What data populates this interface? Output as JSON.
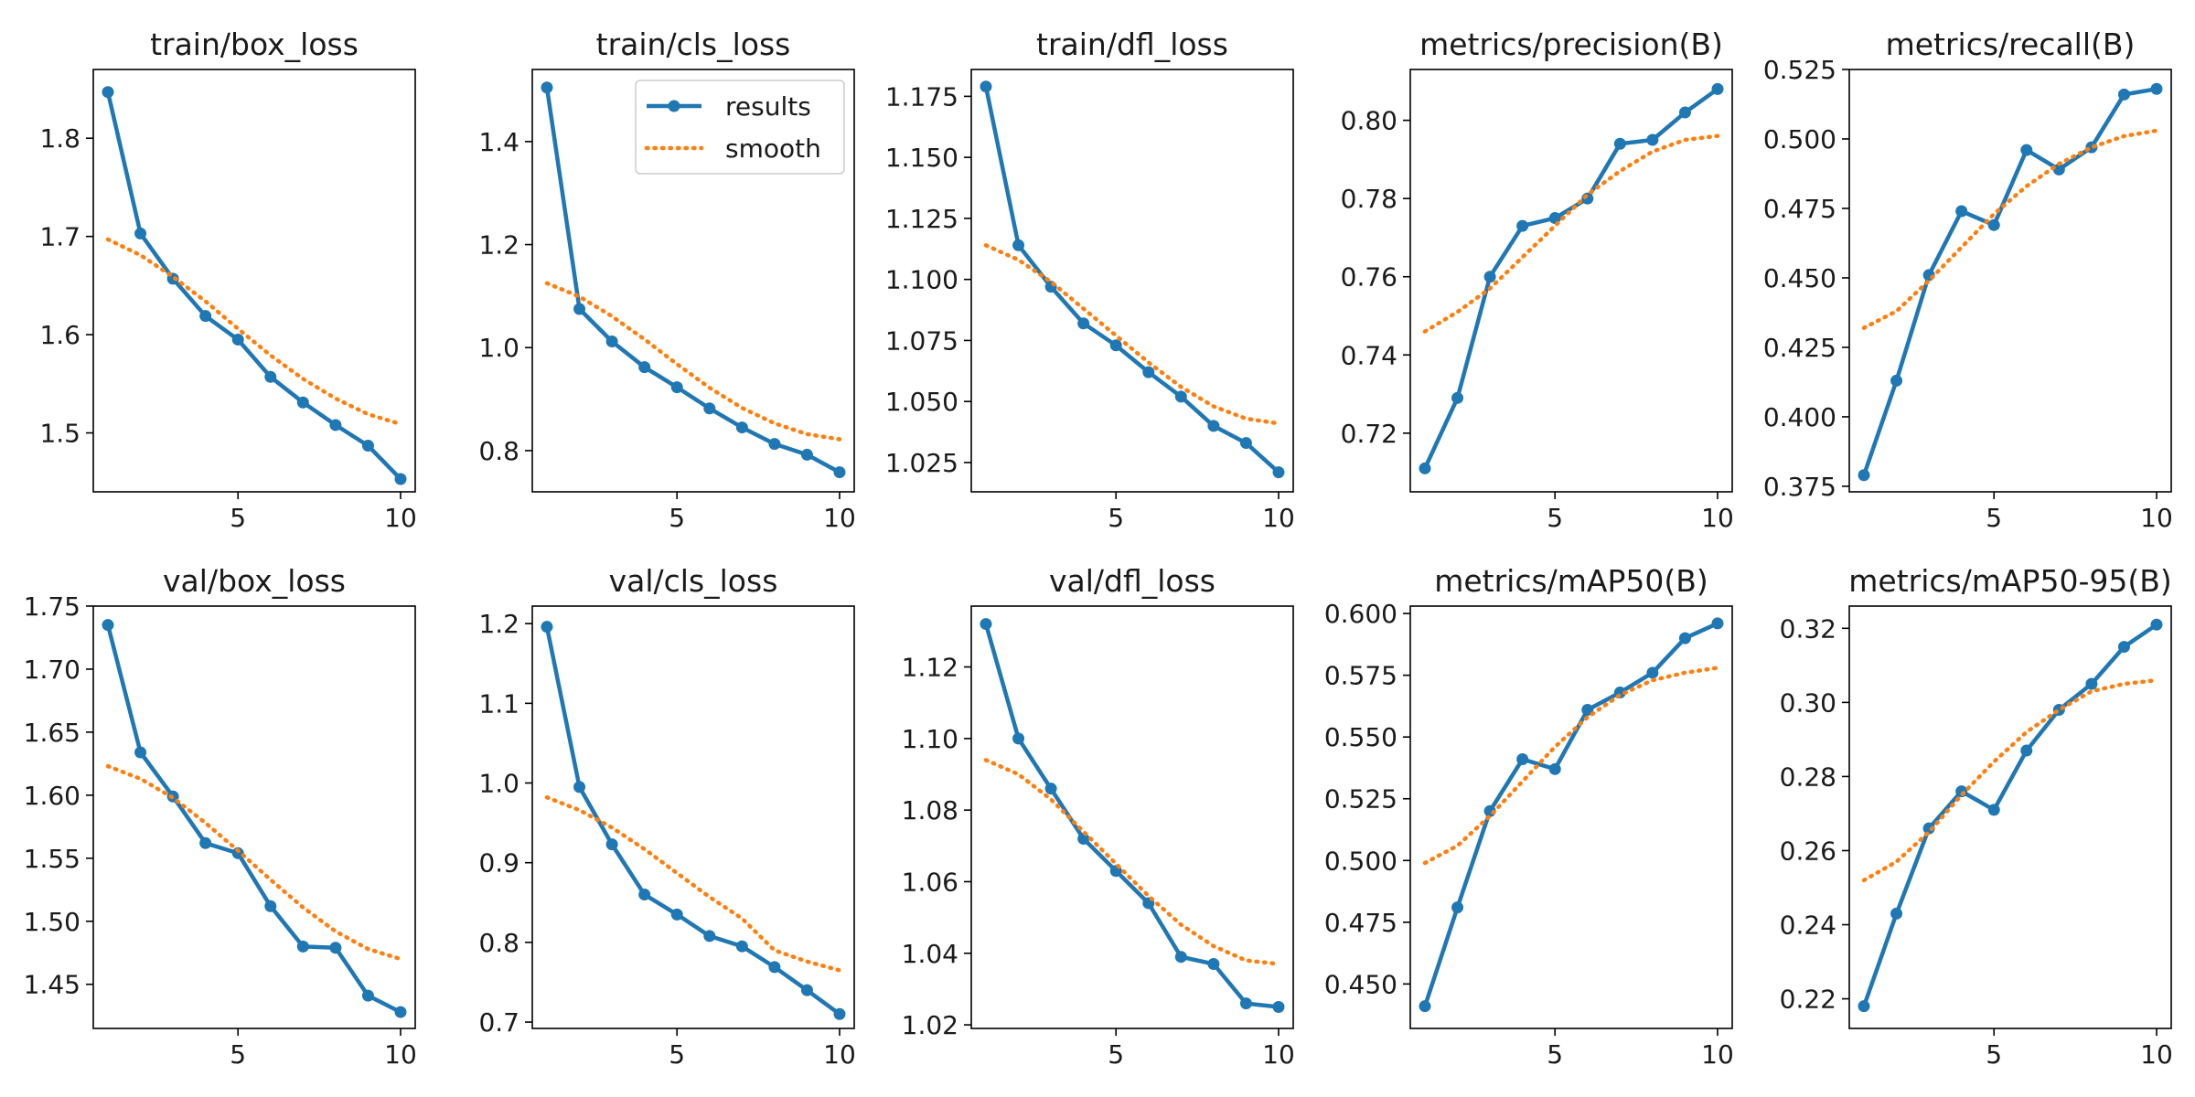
{
  "colors": {
    "results": "#1f77b4",
    "smooth": "#ff7f0e",
    "axes": "#000000"
  },
  "legend": {
    "placement": "top-right",
    "panel": 1,
    "results_label": "results",
    "smooth_label": "smooth"
  },
  "chart_data": [
    {
      "type": "line",
      "title": "train/box_loss",
      "x": [
        1,
        2,
        3,
        4,
        5,
        6,
        7,
        8,
        9,
        10
      ],
      "series": [
        {
          "name": "results",
          "values": [
            1.847,
            1.703,
            1.657,
            1.619,
            1.595,
            1.557,
            1.531,
            1.508,
            1.487,
            1.453
          ]
        },
        {
          "name": "smooth",
          "values": [
            1.697,
            1.681,
            1.659,
            1.634,
            1.606,
            1.579,
            1.555,
            1.535,
            1.519,
            1.509
          ]
        }
      ],
      "xlim": [
        0.55,
        10.45
      ],
      "ylim": [
        1.44,
        1.87
      ],
      "xticks": [
        5,
        10
      ],
      "yticks": [
        1.5,
        1.6,
        1.7,
        1.8
      ]
    },
    {
      "type": "line",
      "title": "train/cls_loss",
      "x": [
        1,
        2,
        3,
        4,
        5,
        6,
        7,
        8,
        9,
        10
      ],
      "series": [
        {
          "name": "results",
          "values": [
            1.505,
            1.075,
            1.012,
            0.962,
            0.923,
            0.882,
            0.845,
            0.813,
            0.792,
            0.758
          ]
        },
        {
          "name": "smooth",
          "values": [
            1.125,
            1.099,
            1.061,
            1.016,
            0.968,
            0.922,
            0.883,
            0.853,
            0.832,
            0.822
          ]
        }
      ],
      "xlim": [
        0.55,
        10.45
      ],
      "ylim": [
        0.72,
        1.54
      ],
      "xticks": [
        5,
        10
      ],
      "yticks": [
        0.8,
        1.0,
        1.2,
        1.4
      ]
    },
    {
      "type": "line",
      "title": "train/dfl_loss",
      "x": [
        1,
        2,
        3,
        4,
        5,
        6,
        7,
        8,
        9,
        10
      ],
      "series": [
        {
          "name": "results",
          "values": [
            1.179,
            1.114,
            1.097,
            1.082,
            1.073,
            1.062,
            1.052,
            1.04,
            1.033,
            1.021
          ]
        },
        {
          "name": "smooth",
          "values": [
            1.114,
            1.108,
            1.099,
            1.088,
            1.077,
            1.066,
            1.056,
            1.048,
            1.043,
            1.041
          ]
        }
      ],
      "xlim": [
        0.55,
        10.45
      ],
      "ylim": [
        1.013,
        1.186
      ],
      "xticks": [
        5,
        10
      ],
      "yticks": [
        1.025,
        1.05,
        1.075,
        1.1,
        1.125,
        1.15,
        1.175
      ]
    },
    {
      "type": "line",
      "title": "metrics/precision(B)",
      "x": [
        1,
        2,
        3,
        4,
        5,
        6,
        7,
        8,
        9,
        10
      ],
      "series": [
        {
          "name": "results",
          "values": [
            0.711,
            0.729,
            0.76,
            0.773,
            0.775,
            0.78,
            0.794,
            0.795,
            0.802,
            0.808
          ]
        },
        {
          "name": "smooth",
          "values": [
            0.746,
            0.751,
            0.757,
            0.765,
            0.773,
            0.781,
            0.787,
            0.792,
            0.795,
            0.796
          ]
        }
      ],
      "xlim": [
        0.55,
        10.45
      ],
      "ylim": [
        0.705,
        0.813
      ],
      "xticks": [
        5,
        10
      ],
      "yticks": [
        0.72,
        0.74,
        0.76,
        0.78,
        0.8
      ]
    },
    {
      "type": "line",
      "title": "metrics/recall(B)",
      "x": [
        1,
        2,
        3,
        4,
        5,
        6,
        7,
        8,
        9,
        10
      ],
      "series": [
        {
          "name": "results",
          "values": [
            0.379,
            0.413,
            0.451,
            0.474,
            0.469,
            0.496,
            0.489,
            0.497,
            0.516,
            0.518
          ]
        },
        {
          "name": "smooth",
          "values": [
            0.432,
            0.438,
            0.449,
            0.461,
            0.473,
            0.483,
            0.491,
            0.497,
            0.501,
            0.503
          ]
        }
      ],
      "xlim": [
        0.55,
        10.45
      ],
      "ylim": [
        0.373,
        0.525
      ],
      "xticks": [
        5,
        10
      ],
      "yticks": [
        0.375,
        0.4,
        0.425,
        0.45,
        0.475,
        0.5,
        0.525
      ]
    },
    {
      "type": "line",
      "title": "val/box_loss",
      "x": [
        1,
        2,
        3,
        4,
        5,
        6,
        7,
        8,
        9,
        10
      ],
      "series": [
        {
          "name": "results",
          "values": [
            1.735,
            1.634,
            1.599,
            1.562,
            1.554,
            1.512,
            1.48,
            1.479,
            1.441,
            1.428
          ]
        },
        {
          "name": "smooth",
          "values": [
            1.623,
            1.613,
            1.598,
            1.578,
            1.556,
            1.533,
            1.511,
            1.492,
            1.478,
            1.47
          ]
        }
      ],
      "xlim": [
        0.55,
        10.45
      ],
      "ylim": [
        1.415,
        1.75
      ],
      "xticks": [
        5,
        10
      ],
      "yticks": [
        1.45,
        1.5,
        1.55,
        1.6,
        1.65,
        1.7,
        1.75
      ]
    },
    {
      "type": "line",
      "title": "val/cls_loss",
      "x": [
        1,
        2,
        3,
        4,
        5,
        6,
        7,
        8,
        9,
        10
      ],
      "series": [
        {
          "name": "results",
          "values": [
            1.196,
            0.995,
            0.923,
            0.86,
            0.835,
            0.808,
            0.795,
            0.769,
            0.74,
            0.71
          ]
        },
        {
          "name": "smooth",
          "values": [
            0.982,
            0.966,
            0.944,
            0.917,
            0.887,
            0.857,
            0.83,
            0.79,
            0.776,
            0.765
          ]
        }
      ],
      "xlim": [
        0.55,
        10.45
      ],
      "ylim": [
        0.692,
        1.222
      ],
      "xticks": [
        5,
        10
      ],
      "yticks": [
        0.7,
        0.8,
        0.9,
        1.0,
        1.1,
        1.2
      ]
    },
    {
      "type": "line",
      "title": "val/dfl_loss",
      "x": [
        1,
        2,
        3,
        4,
        5,
        6,
        7,
        8,
        9,
        10
      ],
      "series": [
        {
          "name": "results",
          "values": [
            1.132,
            1.1,
            1.086,
            1.072,
            1.063,
            1.054,
            1.039,
            1.037,
            1.026,
            1.025
          ]
        },
        {
          "name": "smooth",
          "values": [
            1.094,
            1.09,
            1.083,
            1.074,
            1.065,
            1.056,
            1.048,
            1.042,
            1.038,
            1.037
          ]
        }
      ],
      "xlim": [
        0.55,
        10.45
      ],
      "ylim": [
        1.019,
        1.137
      ],
      "xticks": [
        5,
        10
      ],
      "yticks": [
        1.02,
        1.04,
        1.06,
        1.08,
        1.1,
        1.12
      ]
    },
    {
      "type": "line",
      "title": "metrics/mAP50(B)",
      "x": [
        1,
        2,
        3,
        4,
        5,
        6,
        7,
        8,
        9,
        10
      ],
      "series": [
        {
          "name": "results",
          "values": [
            0.441,
            0.481,
            0.52,
            0.541,
            0.537,
            0.561,
            0.568,
            0.576,
            0.59,
            0.596
          ]
        },
        {
          "name": "smooth",
          "values": [
            0.499,
            0.506,
            0.518,
            0.532,
            0.546,
            0.558,
            0.567,
            0.573,
            0.576,
            0.578
          ]
        }
      ],
      "xlim": [
        0.55,
        10.45
      ],
      "ylim": [
        0.432,
        0.603
      ],
      "xticks": [
        5,
        10
      ],
      "yticks": [
        0.45,
        0.475,
        0.5,
        0.525,
        0.55,
        0.575,
        0.6
      ]
    },
    {
      "type": "line",
      "title": "metrics/mAP50-95(B)",
      "x": [
        1,
        2,
        3,
        4,
        5,
        6,
        7,
        8,
        9,
        10
      ],
      "series": [
        {
          "name": "results",
          "values": [
            0.218,
            0.243,
            0.266,
            0.276,
            0.271,
            0.287,
            0.298,
            0.305,
            0.315,
            0.321
          ]
        },
        {
          "name": "smooth",
          "values": [
            0.252,
            0.257,
            0.265,
            0.275,
            0.284,
            0.292,
            0.298,
            0.303,
            0.305,
            0.306
          ]
        }
      ],
      "xlim": [
        0.55,
        10.45
      ],
      "ylim": [
        0.212,
        0.326
      ],
      "xticks": [
        5,
        10
      ],
      "yticks": [
        0.22,
        0.24,
        0.26,
        0.28,
        0.3,
        0.32
      ]
    }
  ]
}
